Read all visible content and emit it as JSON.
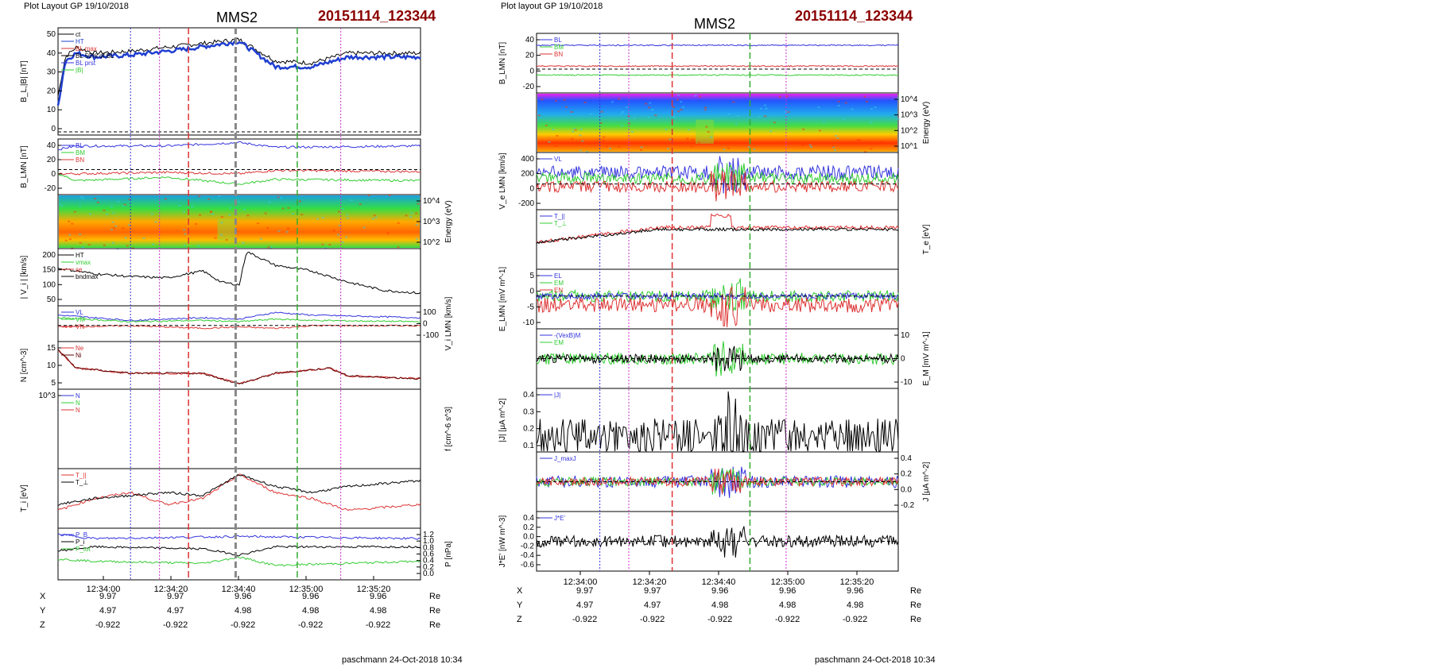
{
  "left": {
    "layout_label": "Plot Layout GP 19/10/2018",
    "spacecraft": "MMS2",
    "event_id": "20151114_123344",
    "footer": "paschmann 24-Oct-2018 10:34",
    "time_ticks": [
      "12:34:00",
      "12:34:20",
      "12:34:40",
      "12:35:00",
      "12:35:20"
    ],
    "coords": {
      "rows": [
        {
          "label": "X",
          "values": [
            "9.97",
            "9.97",
            "9.96",
            "9.96",
            "9.96"
          ],
          "unit": "Re"
        },
        {
          "label": "Y",
          "values": [
            "4.97",
            "4.97",
            "4.98",
            "4.98",
            "4.98"
          ],
          "unit": "Re"
        },
        {
          "label": "Z",
          "values": [
            "-0.922",
            "-0.922",
            "-0.922",
            "-0.922",
            "-0.922"
          ],
          "unit": "Re"
        }
      ]
    }
  },
  "right": {
    "layout_label": "Plot layout GP 19/10/2018",
    "spacecraft": "MMS2",
    "event_id": "20151114_123344",
    "footer": "paschmann 24-Oct-2018 10:34",
    "time_ticks": [
      "12:34:00",
      "12:34:20",
      "12:34:40",
      "12:35:00",
      "12:35:20"
    ],
    "coords": {
      "rows": [
        {
          "label": "X",
          "values": [
            "9.97",
            "9.97",
            "9.96",
            "9.96",
            "9.96"
          ],
          "unit": "Re"
        },
        {
          "label": "Y",
          "values": [
            "4.97",
            "4.97",
            "4.98",
            "4.98",
            "4.98"
          ],
          "unit": "Re"
        },
        {
          "label": "Z",
          "values": [
            "-0.922",
            "-0.922",
            "-0.922",
            "-0.922",
            "-0.922"
          ],
          "unit": "Re"
        }
      ]
    }
  },
  "chart_data": [
    {
      "type": "line",
      "title": "MMS2",
      "panels": [
        {
          "ylabel": "B_L,|B| [nT]",
          "yticks": [
            "50",
            "40",
            "30",
            "20",
            "10",
            "0"
          ],
          "ylim": [
            0,
            55
          ],
          "legend": [
            "ct",
            "HT",
            "BL max",
            "BL 50% of BL",
            "BL prst",
            "|B|"
          ],
          "series": [
            {
              "name": "|B|",
              "color": "#000000",
              "x": [
                0,
                0.02,
                0.05,
                0.1,
                0.2,
                0.35,
                0.5,
                0.6,
                0.7,
                0.8,
                1.0
              ],
              "values": [
                20,
                40,
                45,
                42,
                43,
                46,
                49,
                38,
                37,
                42,
                42
              ]
            },
            {
              "name": "B_L",
              "color": "#1f3fd0",
              "x": [
                0,
                0.02,
                0.05,
                0.1,
                0.2,
                0.35,
                0.5,
                0.6,
                0.7,
                0.8,
                1.0
              ],
              "values": [
                15,
                38,
                42,
                40,
                41,
                44,
                48,
                35,
                35,
                40,
                40
              ]
            }
          ]
        },
        {
          "ylabel": "B_LMN [nT]",
          "yticks": [
            "40",
            "20",
            "0",
            "-20"
          ],
          "ylim": [
            -30,
            50
          ],
          "legend": [
            "BL",
            "BM",
            "BN"
          ],
          "series": [
            {
              "name": "BL",
              "color": "#3333dd",
              "x": [
                0,
                0.05,
                0.3,
                0.5,
                0.6,
                1.0
              ],
              "values": [
                35,
                40,
                40,
                45,
                38,
                40
              ]
            },
            {
              "name": "BM",
              "color": "#33cc33",
              "x": [
                0,
                0.05,
                0.3,
                0.5,
                0.6,
                1.0
              ],
              "values": [
                0,
                -10,
                -5,
                -15,
                -8,
                -10
              ]
            },
            {
              "name": "BN",
              "color": "#dd3333",
              "x": [
                0,
                0.05,
                0.3,
                0.5,
                0.6,
                1.0
              ],
              "values": [
                0,
                0,
                2,
                0,
                5,
                3
              ]
            }
          ]
        },
        {
          "ylabel": "Energy (eV)",
          "type": "heatmap",
          "yticks": [
            "10^4",
            "10^3",
            "10^2"
          ]
        },
        {
          "ylabel": "| V_i | [km/s]",
          "yticks": [
            "200",
            "150",
            "100",
            "50"
          ],
          "ylim": [
            25,
            230
          ],
          "legend": [
            "HT",
            "vmax",
            "se",
            "bndmax"
          ],
          "series": [
            {
              "name": "|Vi|",
              "color": "#000000",
              "x": [
                0,
                0.1,
                0.2,
                0.3,
                0.4,
                0.45,
                0.5,
                0.52,
                0.6,
                0.7,
                0.8,
                0.9,
                1.0
              ],
              "values": [
                160,
                140,
                130,
                125,
                150,
                110,
                100,
                220,
                170,
                150,
                110,
                80,
                70
              ]
            }
          ]
        },
        {
          "ylabel": "V_i LMN [km/s]",
          "yticks": [
            "100",
            "0",
            "-100"
          ],
          "ylim": [
            -120,
            150
          ],
          "legend": [
            "VL",
            "VM",
            "VN"
          ],
          "series": [
            {
              "name": "VL",
              "color": "#3333dd",
              "x": [
                0,
                0.2,
                0.4,
                0.5,
                0.6,
                0.7,
                1.0
              ],
              "values": [
                80,
                40,
                60,
                50,
                100,
                80,
                60
              ]
            },
            {
              "name": "VM",
              "color": "#33cc33",
              "x": [
                0,
                0.2,
                0.4,
                0.5,
                0.6,
                0.7,
                1.0
              ],
              "values": [
                60,
                30,
                40,
                30,
                50,
                40,
                30
              ]
            },
            {
              "name": "VN",
              "color": "#dd3333",
              "x": [
                0,
                0.2,
                0.4,
                0.5,
                0.6,
                0.7,
                1.0
              ],
              "values": [
                -10,
                0,
                -20,
                -10,
                -20,
                0,
                0
              ]
            }
          ]
        },
        {
          "ylabel": "N [cm^-3]",
          "yticks": [
            "15",
            "10",
            "5"
          ],
          "ylim": [
            0,
            18
          ],
          "legend": [
            "Ne",
            "Ni"
          ],
          "series": [
            {
              "name": "Ne",
              "color": "#dd3333",
              "x": [
                0,
                0.05,
                0.2,
                0.4,
                0.5,
                0.6,
                0.75,
                0.8,
                1.0
              ],
              "values": [
                15,
                8,
                6,
                6,
                2,
                6,
                8,
                5,
                4
              ]
            },
            {
              "name": "Ni",
              "color": "#5c0000",
              "x": [
                0,
                0.05,
                0.2,
                0.4,
                0.5,
                0.6,
                0.75,
                0.8,
                1.0
              ],
              "values": [
                15,
                8,
                6,
                6,
                2,
                6,
                8,
                5,
                4
              ]
            }
          ]
        },
        {
          "ylabel": "f [cm^-6 s^3]",
          "legend": [
            "N",
            "N",
            "N"
          ],
          "yticks": [
            "10^3"
          ]
        },
        {
          "ylabel": "T_i [eV]",
          "legend": [
            "T_||",
            "T_⊥"
          ],
          "series": [
            {
              "name": "T_||",
              "color": "#dd3333",
              "x": [
                0,
                0.1,
                0.2,
                0.3,
                0.4,
                0.5,
                0.6,
                0.7,
                0.8,
                1.0
              ],
              "values": [
                0.3,
                0.5,
                0.6,
                0.4,
                0.5,
                0.9,
                0.6,
                0.5,
                0.3,
                0.4
              ]
            },
            {
              "name": "T_⊥",
              "color": "#000000",
              "x": [
                0,
                0.1,
                0.2,
                0.3,
                0.4,
                0.5,
                0.6,
                0.7,
                0.8,
                1.0
              ],
              "values": [
                0.4,
                0.5,
                0.55,
                0.6,
                0.55,
                0.9,
                0.7,
                0.6,
                0.7,
                0.8
              ]
            }
          ]
        },
        {
          "ylabel": "P [nPa]",
          "yticks": [
            "1.2",
            "1.0",
            "0.8",
            "0.6",
            "0.4",
            "0.2",
            "0.0"
          ],
          "ylim": [
            0,
            1.25
          ],
          "legend": [
            "P_B",
            "P_i",
            "P_tot"
          ],
          "series": [
            {
              "name": "P_B",
              "color": "#3333dd",
              "x": [
                0,
                0.1,
                0.5,
                1.0
              ],
              "values": [
                1.1,
                1.0,
                1.05,
                1.0
              ]
            },
            {
              "name": "P_i",
              "color": "#000000",
              "x": [
                0,
                0.1,
                0.4,
                0.5,
                0.6,
                1.0
              ],
              "values": [
                0.7,
                0.8,
                0.75,
                0.6,
                0.8,
                0.8
              ]
            },
            {
              "name": "P_tot",
              "color": "#33cc33",
              "x": [
                0,
                0.1,
                0.4,
                0.5,
                0.6,
                1.0
              ],
              "values": [
                0.5,
                0.45,
                0.4,
                0.55,
                0.35,
                0.45
              ]
            }
          ]
        }
      ]
    },
    {
      "type": "line",
      "title": "MMS2",
      "panels": [
        {
          "ylabel": "B_LMN [nT]",
          "yticks": [
            "40",
            "20",
            "0",
            "-20"
          ],
          "legend": [
            "BL",
            "BM",
            "BN"
          ]
        },
        {
          "ylabel": "Energy (eV)",
          "type": "heatmap",
          "yticks": [
            "10^4",
            "10^3",
            "10^2",
            "10^1"
          ]
        },
        {
          "ylabel": "V_e LMN [km/s]",
          "yticks": [
            "400",
            "200",
            "0",
            "-200"
          ],
          "legend": [
            "VL"
          ]
        },
        {
          "ylabel": "T_e [eV]",
          "legend": [
            "T_||",
            "T_⊥"
          ]
        },
        {
          "ylabel": "E_LMN [mV m^-1]",
          "yticks": [
            "5",
            "0",
            "-5",
            "-10"
          ],
          "legend": [
            "EL",
            "EM",
            "EN"
          ]
        },
        {
          "ylabel": "E_M [mV m^-1]",
          "yticks": [
            "10",
            "0",
            "-10"
          ],
          "legend": [
            "-(VexB)M",
            "EM"
          ]
        },
        {
          "ylabel": "|J| [μA m^-2]",
          "yticks": [
            "0.4",
            "0.3",
            "0.2",
            "0.1"
          ],
          "legend": [
            "|J|"
          ]
        },
        {
          "ylabel": "J [μA m^-2]",
          "yticks": [
            "0.4",
            "0.2",
            "0.0",
            "-0.2"
          ],
          "legend": [
            "J_maxJ"
          ]
        },
        {
          "ylabel": "J*E' [nW m^-3]",
          "yticks": [
            "0.4",
            "0.2",
            "0.0",
            "-0.2",
            "-0.4",
            "-0.6"
          ],
          "legend": [
            "J*E'"
          ]
        }
      ]
    }
  ]
}
